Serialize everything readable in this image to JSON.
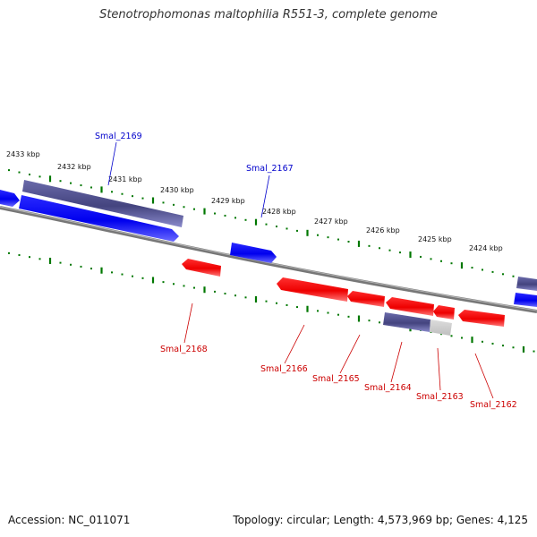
{
  "title": "Stenotrophomonas maltophilia R551-3, complete genome",
  "footer": {
    "accession": "Accession: NC_011071",
    "summary": "Topology: circular; Length: 4,573,969 bp; Genes: 4,125"
  },
  "colors": {
    "forward": "#0000ee",
    "reverse": "#ee0000",
    "pseudo": "#4b4b8c",
    "tick": "#007700",
    "backbone": "#777777"
  },
  "scale_labels": [
    "2433 kbp",
    "2432 kbp",
    "2431 kbp",
    "2430 kbp",
    "2429 kbp",
    "2428 kbp",
    "2427 kbp",
    "2426 kbp",
    "2425 kbp",
    "2424 kbp"
  ],
  "gene_labels": {
    "forward": [
      "Smal_2169",
      "Smal_2167"
    ],
    "reverse": [
      "Smal_2168",
      "Smal_2166",
      "Smal_2165",
      "Smal_2164",
      "Smal_2163",
      "Smal_2162"
    ]
  }
}
